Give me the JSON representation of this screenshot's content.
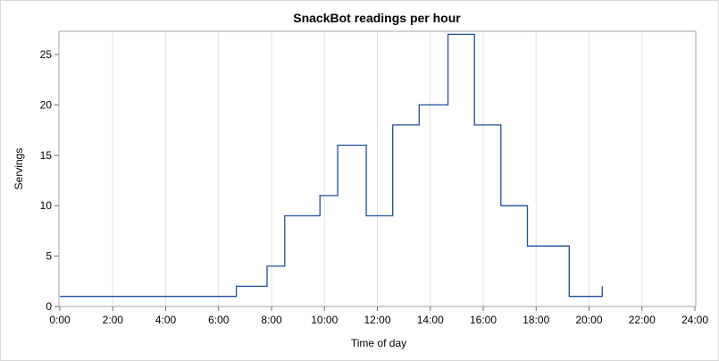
{
  "chart_data": {
    "type": "line",
    "step": true,
    "title": "SnackBot readings per hour",
    "xlabel": "Time of day",
    "ylabel": "Servings",
    "xlim": [
      0,
      24
    ],
    "ylim": [
      0,
      27.3
    ],
    "grid": "vertical",
    "color": "#1f4e9c",
    "x_ticks": [
      "0:00",
      "2:00",
      "4:00",
      "6:00",
      "8:00",
      "10:00",
      "12:00",
      "14:00",
      "16:00",
      "18:00",
      "20:00",
      "22:00",
      "24:00"
    ],
    "y_ticks": [
      "0",
      "5",
      "10",
      "15",
      "20",
      "25"
    ],
    "x_tick_values": [
      0,
      2,
      4,
      6,
      8,
      10,
      12,
      14,
      16,
      18,
      20,
      22,
      24
    ],
    "y_tick_values": [
      0,
      5,
      10,
      15,
      20,
      25
    ],
    "series": [
      {
        "x": [
          0,
          6.67,
          7.83,
          8.5,
          9.83,
          10.5,
          11.58,
          12.58,
          13.58,
          14.67,
          15.67,
          16.67,
          17.67,
          19.25,
          20.5
        ],
        "values": [
          1,
          2,
          4,
          9,
          11,
          16,
          9,
          18,
          20,
          27,
          18,
          10,
          6,
          1,
          2
        ]
      }
    ]
  }
}
